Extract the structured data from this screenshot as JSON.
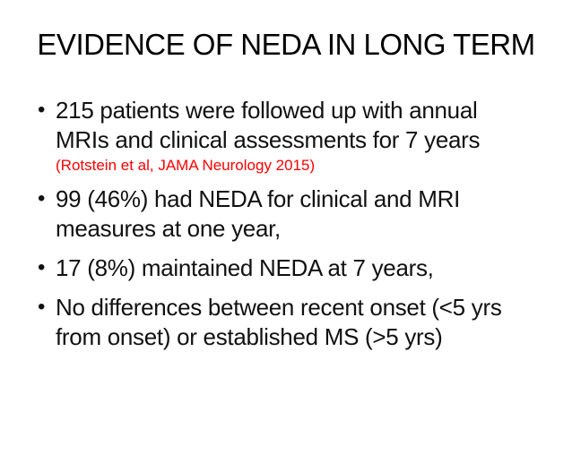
{
  "slide": {
    "title": "EVIDENCE OF NEDA IN LONG TERM",
    "bullet_char": "•",
    "bullets": [
      {
        "lines": [
          "215 patients were followed up with annual",
          "MRIs and clinical assessments for 7 years"
        ],
        "citation": "(Rotstein et al, JAMA Neurology 2015)"
      },
      {
        "lines": [
          "99 (46%) had NEDA for clinical and MRI",
          "measures at one year,"
        ]
      },
      {
        "lines": [
          "17 (8%) maintained NEDA at 7 years,"
        ]
      },
      {
        "lines": [
          "No differences between recent onset (<5 yrs",
          "from onset) or established MS (>5 yrs)"
        ]
      }
    ]
  },
  "colors": {
    "title_text": "#000000",
    "body_text": "#111111",
    "citation_text": "#ff0000",
    "background": "#ffffff"
  }
}
